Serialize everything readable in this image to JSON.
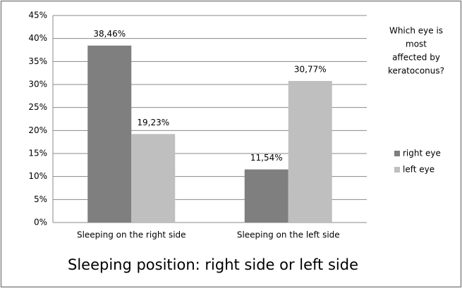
{
  "chart_data": {
    "type": "bar",
    "title": "Sleeping position: right side or left side",
    "legend_title": [
      "Which eye is",
      "most",
      "affected by",
      "keratoconus?"
    ],
    "categories": [
      "Sleeping on the right side",
      "Sleeping on the left side"
    ],
    "series": [
      {
        "name": "right eye",
        "color": "#7f7f7f",
        "values": [
          38.46,
          11.54
        ],
        "value_labels": [
          "38,46%",
          "11,54%"
        ]
      },
      {
        "name": "left eye",
        "color": "#bfbfbf",
        "values": [
          19.23,
          30.77
        ],
        "value_labels": [
          "19,23%",
          "30,77%"
        ]
      }
    ],
    "ylim": [
      0,
      45
    ],
    "yticks": [
      {
        "value": 0,
        "label": "0%"
      },
      {
        "value": 5,
        "label": "5%"
      },
      {
        "value": 10,
        "label": "10%"
      },
      {
        "value": 15,
        "label": "15%"
      },
      {
        "value": 20,
        "label": "20%"
      },
      {
        "value": 25,
        "label": "25%"
      },
      {
        "value": 30,
        "label": "30%"
      },
      {
        "value": 35,
        "label": "35%"
      },
      {
        "value": 40,
        "label": "40%"
      },
      {
        "value": 45,
        "label": "45%"
      }
    ],
    "grid": true,
    "legend": "right"
  }
}
